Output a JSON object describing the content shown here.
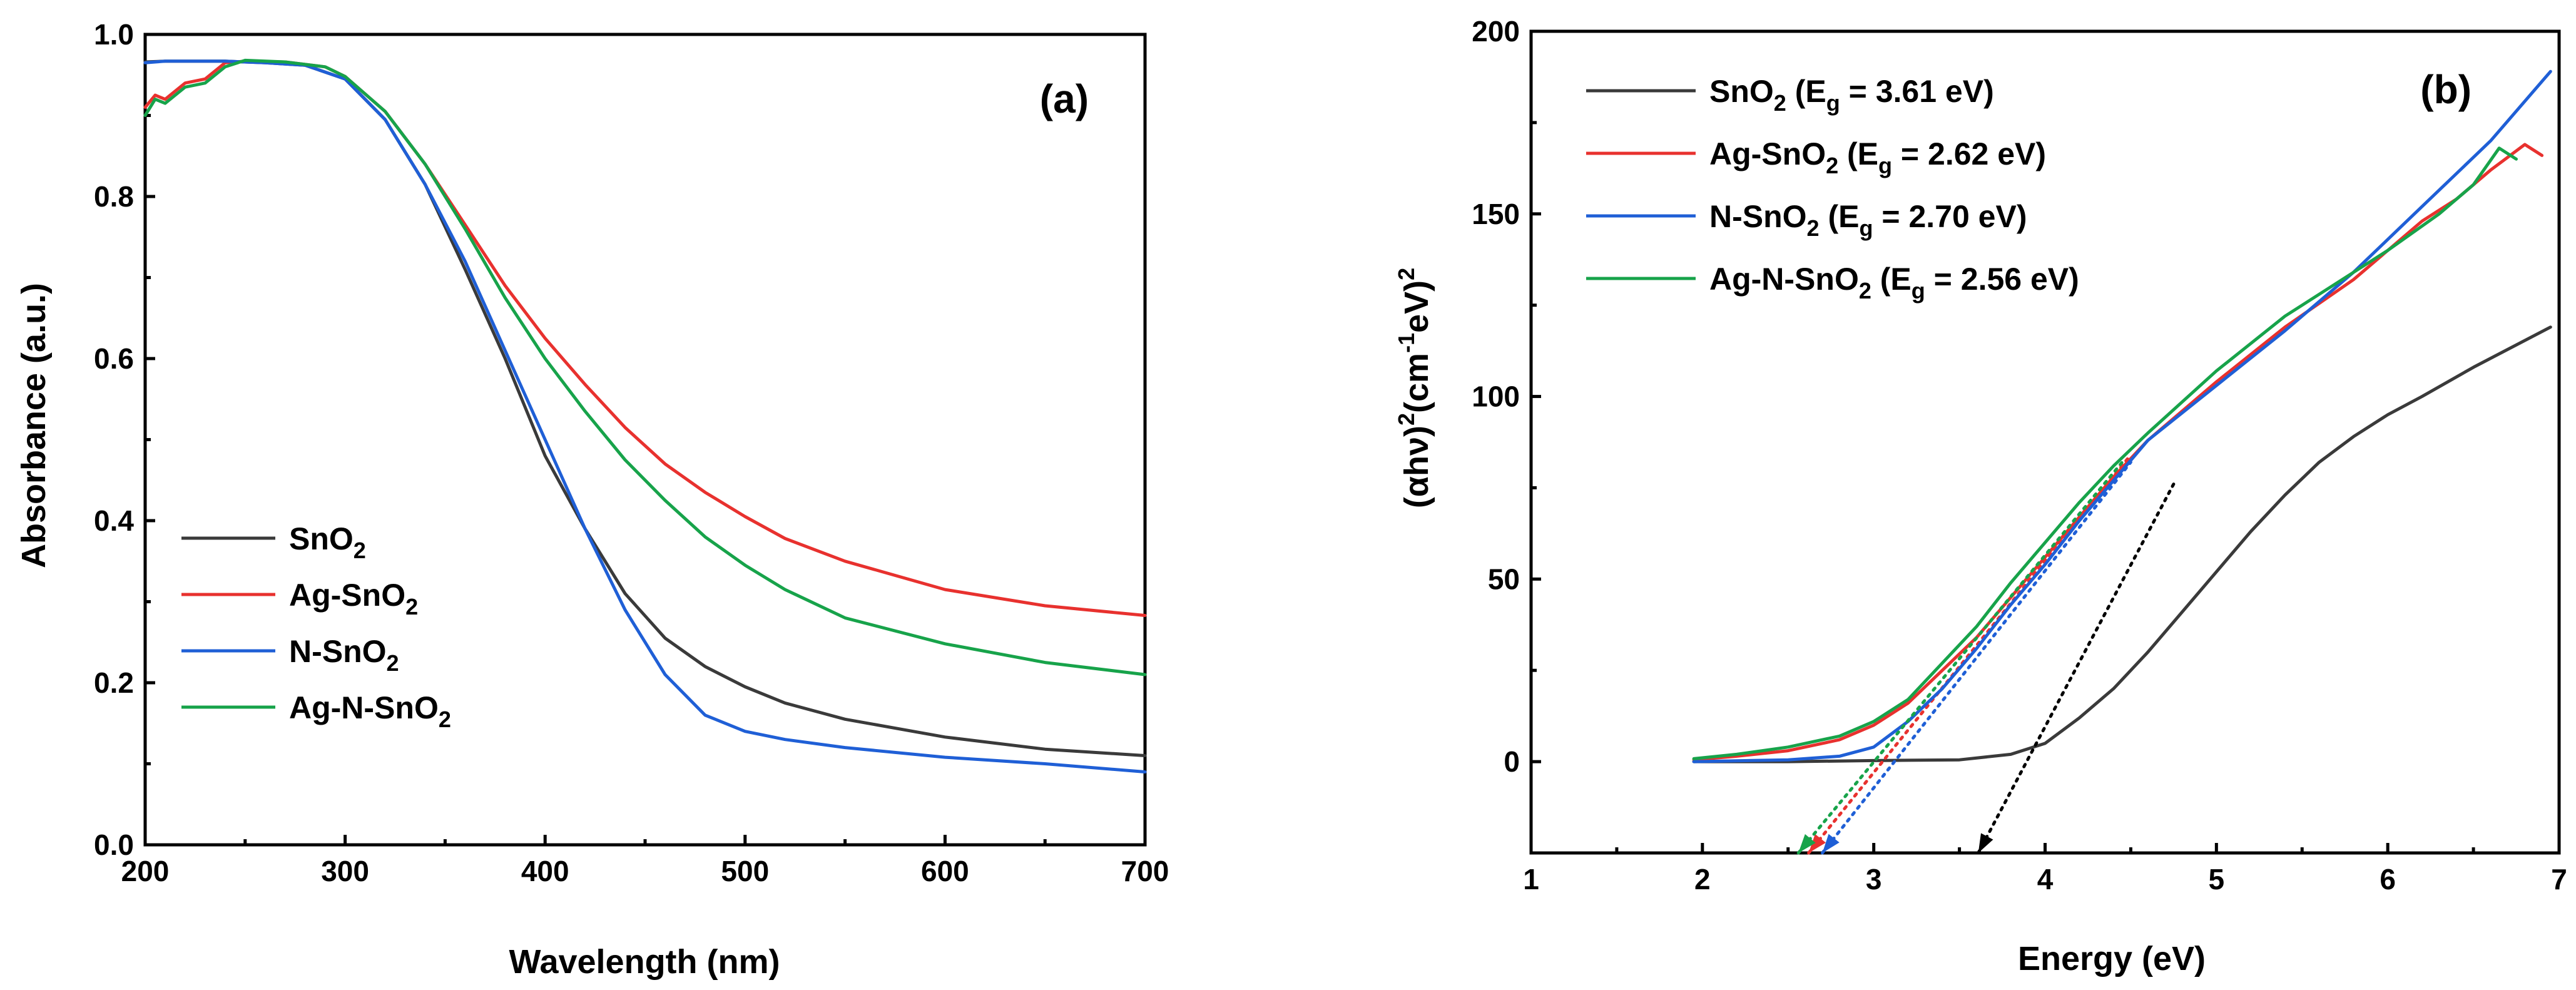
{
  "chart_data": [
    {
      "panel": "(a)",
      "type": "line",
      "xlabel": "Wavelength (nm)",
      "ylabel": "Absorbance (a.u.)",
      "xlim": [
        200,
        700
      ],
      "ylim": [
        0.0,
        1.0
      ],
      "xticks": [
        200,
        300,
        400,
        500,
        600,
        700
      ],
      "yticks": [
        0.0,
        0.2,
        0.4,
        0.6,
        0.8,
        1.0
      ],
      "xtick_labels": [
        "200",
        "300",
        "400",
        "500",
        "600",
        "700"
      ],
      "ytick_labels": [
        "0.0",
        "0.2",
        "0.4",
        "0.6",
        "0.8",
        "1.0"
      ],
      "legend_position": "bottom-left",
      "series": [
        {
          "key": "sno2",
          "name": "SnO2",
          "label_base": "SnO",
          "label_sub": "2",
          "color": "#3a3a3a",
          "x": [
            200,
            210,
            220,
            230,
            240,
            260,
            280,
            300,
            320,
            340,
            360,
            380,
            400,
            420,
            440,
            460,
            480,
            500,
            520,
            550,
            600,
            650,
            700
          ],
          "y": [
            0.966,
            0.967,
            0.967,
            0.967,
            0.967,
            0.965,
            0.962,
            0.945,
            0.895,
            0.815,
            0.71,
            0.6,
            0.48,
            0.39,
            0.31,
            0.255,
            0.22,
            0.195,
            0.175,
            0.155,
            0.133,
            0.118,
            0.11
          ]
        },
        {
          "key": "agsno2",
          "name": "Ag-SnO2",
          "label_base": "Ag-SnO",
          "label_sub": "2",
          "color": "#e8312e",
          "x": [
            200,
            205,
            210,
            220,
            230,
            240,
            250,
            270,
            290,
            300,
            320,
            340,
            360,
            380,
            400,
            420,
            440,
            460,
            480,
            500,
            520,
            550,
            600,
            650,
            700
          ],
          "y": [
            0.91,
            0.925,
            0.92,
            0.94,
            0.945,
            0.965,
            0.967,
            0.966,
            0.96,
            0.948,
            0.905,
            0.84,
            0.765,
            0.69,
            0.625,
            0.568,
            0.515,
            0.47,
            0.435,
            0.405,
            0.378,
            0.35,
            0.315,
            0.295,
            0.283
          ]
        },
        {
          "key": "nsno2",
          "name": "N-SnO2",
          "label_base": "N-SnO",
          "label_sub": "2",
          "color": "#1f5fd6",
          "x": [
            200,
            210,
            220,
            230,
            240,
            260,
            280,
            300,
            320,
            340,
            360,
            380,
            400,
            420,
            440,
            460,
            480,
            500,
            520,
            550,
            600,
            650,
            700
          ],
          "y": [
            0.965,
            0.967,
            0.967,
            0.967,
            0.967,
            0.965,
            0.962,
            0.945,
            0.895,
            0.815,
            0.72,
            0.61,
            0.5,
            0.39,
            0.29,
            0.21,
            0.16,
            0.14,
            0.13,
            0.12,
            0.108,
            0.1,
            0.09
          ]
        },
        {
          "key": "agnsno2",
          "name": "Ag-N-SnO2",
          "label_base": "Ag-N-SnO",
          "label_sub": "2",
          "color": "#17a34a",
          "x": [
            200,
            205,
            210,
            220,
            230,
            240,
            250,
            270,
            290,
            300,
            320,
            340,
            360,
            380,
            400,
            420,
            440,
            460,
            480,
            500,
            520,
            550,
            600,
            650,
            700
          ],
          "y": [
            0.9,
            0.92,
            0.915,
            0.935,
            0.94,
            0.96,
            0.968,
            0.966,
            0.96,
            0.948,
            0.905,
            0.84,
            0.76,
            0.675,
            0.6,
            0.535,
            0.475,
            0.425,
            0.38,
            0.345,
            0.315,
            0.28,
            0.248,
            0.225,
            0.21
          ]
        }
      ]
    },
    {
      "panel": "(b)",
      "type": "line",
      "xlabel": "Energy (eV)",
      "ylabel_parts": [
        "(αhν)",
        "2",
        "(cm",
        "-1",
        "eV)",
        "2"
      ],
      "xlim": [
        1,
        7
      ],
      "ylim": [
        -25,
        200
      ],
      "xticks": [
        1,
        2,
        3,
        4,
        5,
        6,
        7
      ],
      "yticks": [
        0,
        50,
        100,
        150,
        200
      ],
      "xtick_labels": [
        "1",
        "2",
        "3",
        "4",
        "5",
        "6",
        "7"
      ],
      "ytick_labels": [
        "0",
        "50",
        "100",
        "150",
        "200"
      ],
      "legend_position": "top-left",
      "series": [
        {
          "key": "sno2",
          "name": "SnO2 (Eg = 3.61 eV)",
          "label_base": "SnO",
          "label_sub": "2",
          "label_mid": " (E",
          "label_sub2": "g",
          "label_end": " = 3.61 eV)",
          "color": "#3a3a3a",
          "bandgap": 3.61,
          "fit_end": [
            4.75,
            76
          ],
          "x": [
            1.95,
            2.5,
            3.0,
            3.5,
            3.8,
            4.0,
            4.2,
            4.4,
            4.6,
            4.8,
            5.0,
            5.2,
            5.4,
            5.6,
            5.8,
            6.0,
            6.2,
            6.5,
            6.95
          ],
          "y": [
            0,
            0,
            0.3,
            0.5,
            2,
            5,
            12,
            20,
            30,
            41,
            52,
            63,
            73,
            82,
            89,
            95,
            100,
            108,
            119
          ]
        },
        {
          "key": "agsno2",
          "name": "Ag-SnO2 (Eg = 2.62 eV)",
          "label_base": "Ag-SnO",
          "label_sub": "2",
          "label_mid": " (E",
          "label_sub2": "g",
          "label_end": " = 2.62 eV)",
          "color": "#e8312e",
          "bandgap": 2.62,
          "fit_end": [
            4.5,
            84
          ],
          "x": [
            1.95,
            2.2,
            2.5,
            2.8,
            3.0,
            3.2,
            3.4,
            3.6,
            3.8,
            4.0,
            4.2,
            4.4,
            4.6,
            5.0,
            5.4,
            5.8,
            6.0,
            6.2,
            6.4,
            6.6,
            6.8,
            6.9
          ],
          "y": [
            0.5,
            1.5,
            3,
            6,
            10,
            16,
            25,
            34,
            45,
            56,
            67,
            78,
            88,
            104,
            119,
            132,
            140,
            148,
            154,
            162,
            169,
            166
          ]
        },
        {
          "key": "nsno2",
          "name": "N-SnO2 (Eg = 2.70 eV)",
          "label_base": "N-SnO",
          "label_sub": "2",
          "label_mid": " (E",
          "label_sub2": "g",
          "label_end": " = 2.70 eV)",
          "color": "#1f5fd6",
          "bandgap": 2.7,
          "fit_end": [
            4.5,
            82
          ],
          "x": [
            1.95,
            2.5,
            2.8,
            3.0,
            3.2,
            3.4,
            3.6,
            3.8,
            4.0,
            4.2,
            4.4,
            4.6,
            5.0,
            5.4,
            5.8,
            6.2,
            6.6,
            6.95
          ],
          "y": [
            0,
            0.5,
            1.5,
            4,
            11,
            20,
            31,
            43,
            54,
            66,
            77,
            88,
            103,
            118,
            134,
            152,
            170,
            189
          ]
        },
        {
          "key": "agnsno2",
          "name": "Ag-N-SnO2 (Eg = 2.56 eV)",
          "label_base": "Ag-N-SnO",
          "label_sub": "2",
          "label_mid": " (E",
          "label_sub2": "g",
          "label_end": " = 2.56 eV)",
          "color": "#17a34a",
          "bandgap": 2.56,
          "fit_end": [
            4.45,
            82
          ],
          "x": [
            1.95,
            2.2,
            2.5,
            2.8,
            3.0,
            3.2,
            3.4,
            3.6,
            3.8,
            4.0,
            4.2,
            4.4,
            4.6,
            5.0,
            5.4,
            5.7,
            6.0,
            6.3,
            6.5,
            6.65,
            6.75
          ],
          "y": [
            0.8,
            2,
            4,
            7,
            11,
            17,
            27,
            37,
            49,
            60,
            71,
            81,
            90,
            107,
            122,
            131,
            140,
            150,
            158,
            168,
            165
          ]
        }
      ]
    }
  ]
}
